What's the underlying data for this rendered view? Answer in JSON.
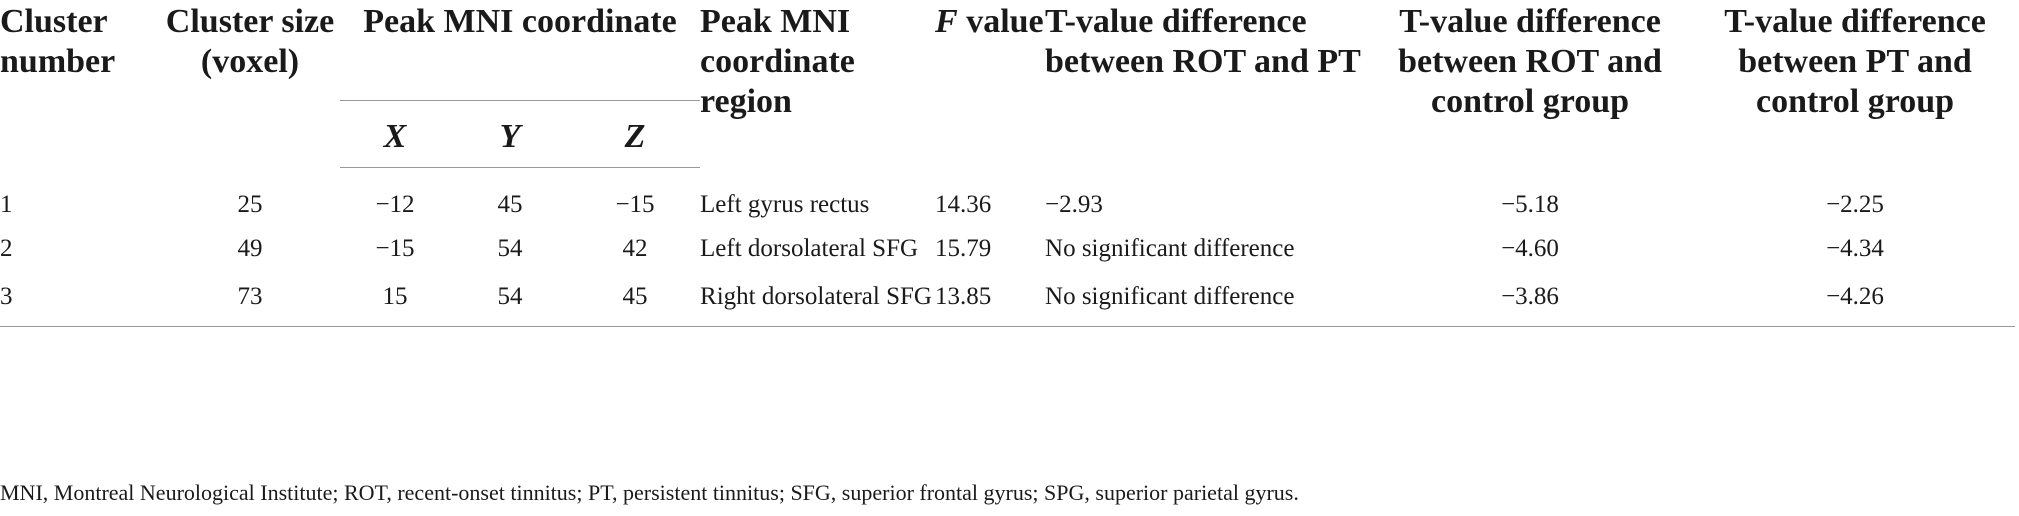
{
  "table": {
    "headers": {
      "cluster_number": "Cluster number",
      "cluster_size": "Cluster size (voxel)",
      "peak_mni_coordinate": "Peak MNI coordinate",
      "axis_x": "X",
      "axis_y": "Y",
      "axis_z": "Z",
      "peak_region": "Peak MNI coordinate region",
      "f_value_italic": "F",
      "f_value_rest": " value",
      "t_rot_pt": "T-value difference between ROT and PT",
      "t_rot_control": "T-value difference between ROT and control group",
      "t_pt_control": "T-value difference between PT and control group"
    },
    "rows": [
      {
        "cluster_number": "1",
        "cluster_size": "25",
        "x": "−12",
        "y": "45",
        "z": "−15",
        "region": "Left gyrus rectus",
        "f_value": "14.36",
        "t_rot_pt": "−2.93",
        "t_rot_control": "−5.18",
        "t_pt_control": "−2.25"
      },
      {
        "cluster_number": "2",
        "cluster_size": "49",
        "x": "−15",
        "y": "54",
        "z": "42",
        "region": "Left dorsolateral SFG",
        "f_value": "15.79",
        "t_rot_pt": "No significant difference",
        "t_rot_control": "−4.60",
        "t_pt_control": "−4.34"
      },
      {
        "cluster_number": "3",
        "cluster_size": "73",
        "x": "15",
        "y": "54",
        "z": "45",
        "region": "Right dorsolateral SFG",
        "f_value": "13.85",
        "t_rot_pt": "No significant difference",
        "t_rot_control": "−3.86",
        "t_pt_control": "−4.26"
      }
    ]
  },
  "footnote": "MNI, Montreal Neurological Institute; ROT, recent-onset tinnitus; PT, persistent tinnitus; SFG, superior frontal gyrus; SPG, superior parietal gyrus."
}
